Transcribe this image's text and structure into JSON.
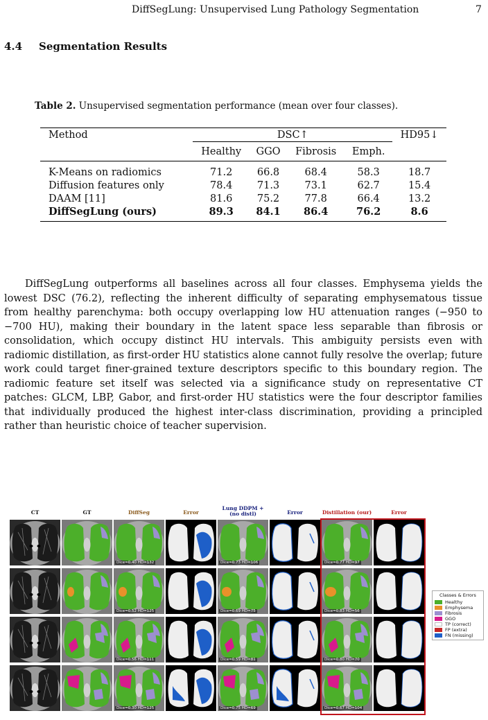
{
  "header": {
    "title": "DiffSegLung: Unsupervised Lung Pathology Segmentation",
    "page": "7"
  },
  "section": {
    "number": "4.4",
    "title": "Segmentation Results"
  },
  "table": {
    "label": "Table 2.",
    "caption": "Unsupervised segmentation performance (mean over four classes).",
    "col_method": "Method",
    "col_dsc": "DSC↑",
    "col_hd": "HD95↓",
    "subcols": [
      "Healthy",
      "GGO",
      "Fibrosis",
      "Emph."
    ],
    "rows": [
      {
        "method": "K-Means on radiomics",
        "values": [
          "71.2",
          "66.8",
          "68.4",
          "58.3",
          "18.7"
        ]
      },
      {
        "method": "Diffusion features only",
        "values": [
          "78.4",
          "71.3",
          "73.1",
          "62.7",
          "15.4"
        ]
      },
      {
        "method": "DAAM [11]",
        "values": [
          "81.6",
          "75.2",
          "77.8",
          "66.4",
          "13.2"
        ]
      },
      {
        "method": "DiffSegLung (ours)",
        "values": [
          "89.3",
          "84.1",
          "86.4",
          "76.2",
          "8.6"
        ]
      }
    ]
  },
  "paragraph": "DiffSegLung outperforms all baselines across all four classes. Emphysema yields the lowest DSC (76.2), reflecting the inherent difficulty of separating emphysematous tissue from healthy parenchyma: both occupy overlapping low HU attenuation ranges (−950 to −700 HU), making their boundary in the latent space less separable than fibrosis or consolidation, which occupy distinct HU intervals. This ambiguity persists even with radiomic distillation, as first-order HU statistics alone cannot fully resolve the overlap; future work could target finer-grained texture descriptors specific to this boundary region. The radiomic feature set itself was selected via a significance study on representative CT patches: GLCM, LBP, Gabor, and first-order HU statistics were the four descriptor families that individually produced the highest inter-class discrimination, providing a principled rather than heuristic choice of teacher supervision.",
  "figure": {
    "columns": [
      {
        "label": "CT",
        "color": "#111111"
      },
      {
        "label": "GT",
        "color": "#111111"
      },
      {
        "label": "DiffSeg",
        "color": "#8a5a1c"
      },
      {
        "label": "Error",
        "color": "#8a5a1c"
      },
      {
        "label": "Lung DDPM + (no distl)",
        "color": "#1a237e"
      },
      {
        "label": "Error",
        "color": "#1a237e"
      },
      {
        "label": "Distillation (our)",
        "color": "#b71c1c"
      },
      {
        "label": "Error",
        "color": "#b71c1c"
      }
    ],
    "metrics": [
      [
        "Dice=0.40  HD=132",
        "Dice=0.73  HD=106",
        "Dice=0.77  HD=97"
      ],
      [
        "Dice=0.52  HD=125",
        "Dice=0.69  HD=75",
        "Dice=0.83  HD=56"
      ],
      [
        "Dice=0.56  HD=111",
        "Dice=0.59  HD=81",
        "Dice=0.80  HD=70"
      ],
      [
        "Dice=0.30  HD=125",
        "Dice=0.75  HD=69",
        "Dice=0.67  HD=104"
      ]
    ],
    "colors": {
      "healthy": "#4caf2a",
      "emphysema": "#e8912a",
      "fibrosis": "#9c8fd0",
      "ggo": "#d81b8c",
      "fp": "#c62828",
      "fn": "#1e5fc8"
    }
  },
  "legend": {
    "title": "Classes & Errors",
    "items": [
      {
        "label": "Healthy",
        "color": "#4caf2a"
      },
      {
        "label": "Emphysema",
        "color": "#e8912a"
      },
      {
        "label": "Fibrosis",
        "color": "#9c8fd0"
      },
      {
        "label": "GGO",
        "color": "#d81b8c"
      },
      {
        "label": "TP (correct)",
        "color": "#ffffff"
      },
      {
        "label": "FP (extra)",
        "color": "#c62828"
      },
      {
        "label": "FN (missing)",
        "color": "#1e5fc8"
      }
    ]
  }
}
